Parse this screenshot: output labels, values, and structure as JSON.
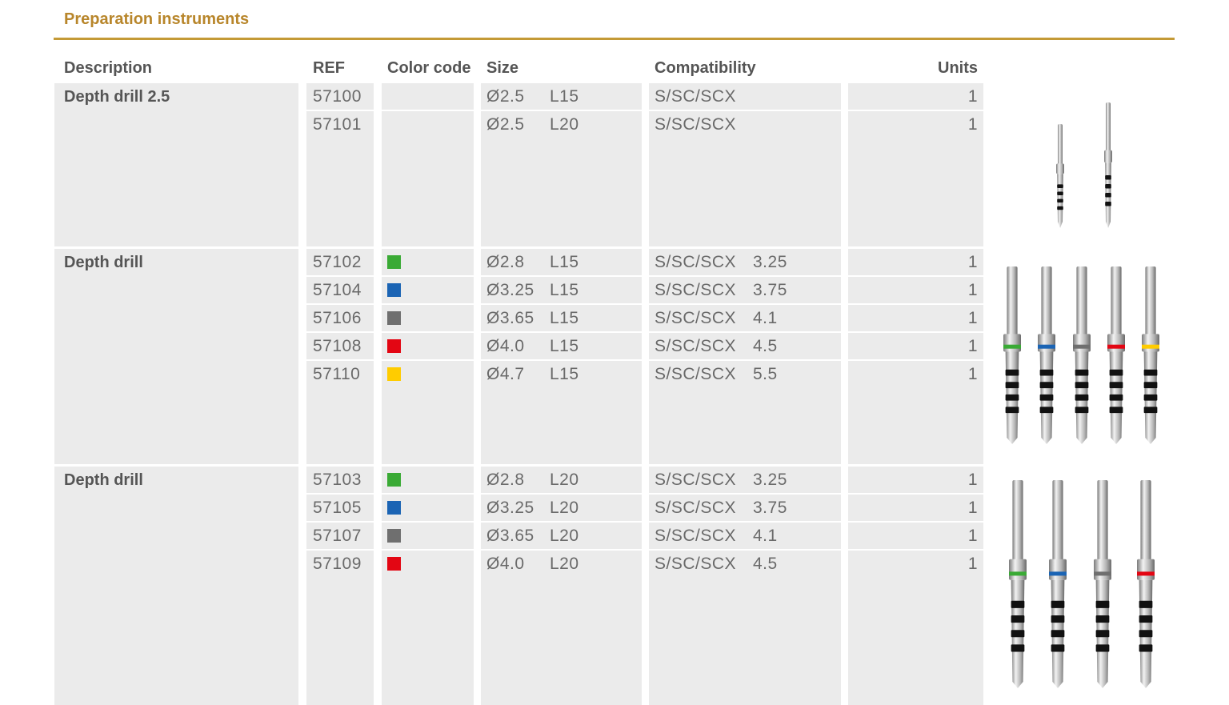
{
  "header": {
    "title": "Preparation instruments"
  },
  "table": {
    "columns": [
      "Description",
      "REF",
      "Color code",
      "Size",
      "Compatibility",
      "Units"
    ],
    "groups": [
      {
        "description": "Depth drill 2.5",
        "rows": [
          {
            "ref": "57100",
            "color": null,
            "diameter": "Ø2.5",
            "length": "L15",
            "compatibility": "S/SC/SCX",
            "platform": null,
            "units": 1
          },
          {
            "ref": "57101",
            "color": null,
            "diameter": "Ø2.5",
            "length": "L20",
            "compatibility": "S/SC/SCX",
            "platform": null,
            "units": 1
          }
        ]
      },
      {
        "description": "Depth drill",
        "rows": [
          {
            "ref": "57102",
            "color": "#3aaa35",
            "diameter": "Ø2.8",
            "length": "L15",
            "compatibility": "S/SC/SCX",
            "platform": "3.25",
            "units": 1
          },
          {
            "ref": "57104",
            "color": "#1b64b4",
            "diameter": "Ø3.25",
            "length": "L15",
            "compatibility": "S/SC/SCX",
            "platform": "3.75",
            "units": 1
          },
          {
            "ref": "57106",
            "color": "#6f6f6f",
            "diameter": "Ø3.65",
            "length": "L15",
            "compatibility": "S/SC/SCX",
            "platform": "4.1",
            "units": 1
          },
          {
            "ref": "57108",
            "color": "#e30613",
            "diameter": "Ø4.0",
            "length": "L15",
            "compatibility": "S/SC/SCX",
            "platform": "4.5",
            "units": 1
          },
          {
            "ref": "57110",
            "color": "#ffcc00",
            "diameter": "Ø4.7",
            "length": "L15",
            "compatibility": "S/SC/SCX",
            "platform": "5.5",
            "units": 1
          }
        ]
      },
      {
        "description": "Depth drill",
        "rows": [
          {
            "ref": "57103",
            "color": "#3aaa35",
            "diameter": "Ø2.8",
            "length": "L20",
            "compatibility": "S/SC/SCX",
            "platform": "3.25",
            "units": 1
          },
          {
            "ref": "57105",
            "color": "#1b64b4",
            "diameter": "Ø3.25",
            "length": "L20",
            "compatibility": "S/SC/SCX",
            "platform": "3.75",
            "units": 1
          },
          {
            "ref": "57107",
            "color": "#6f6f6f",
            "diameter": "Ø3.65",
            "length": "L20",
            "compatibility": "S/SC/SCX",
            "platform": "4.1",
            "units": 1
          },
          {
            "ref": "57109",
            "color": "#e30613",
            "diameter": "Ø4.0",
            "length": "L20",
            "compatibility": "S/SC/SCX",
            "platform": "4.5",
            "units": 1
          }
        ]
      }
    ]
  }
}
